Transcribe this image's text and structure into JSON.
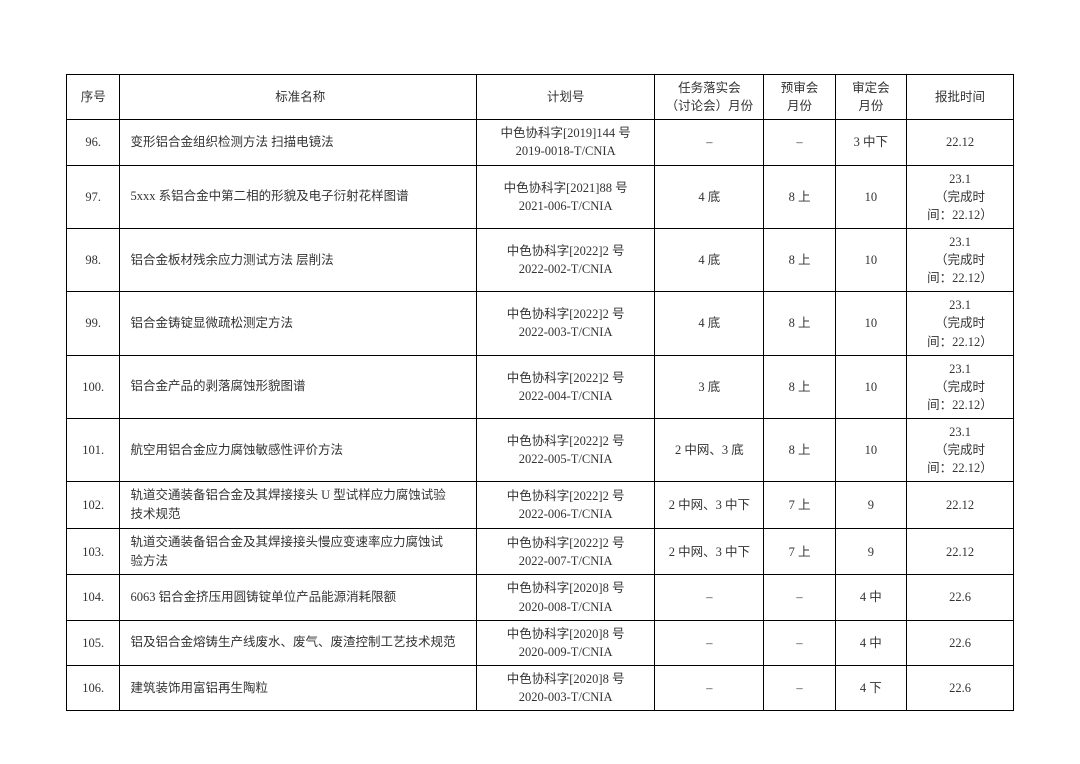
{
  "table": {
    "columns": {
      "seq": "序号",
      "name": "标准名称",
      "plan": "计划号",
      "m1": "任务落实会\n（讨论会）月份",
      "m2": "预审会\n月份",
      "m3": "审定会\n月份",
      "m4": "报批时间"
    },
    "rows": [
      {
        "seq": "96.",
        "name": "变形铝合金组织检测方法 扫描电镜法",
        "plan1": "中色协科字[2019]144 号",
        "plan2": "2019-0018-T/CNIA",
        "m1": "–",
        "m2": "–",
        "m3": "3 中下",
        "m4": "22.12"
      },
      {
        "seq": "97.",
        "name": "5xxx 系铝合金中第二相的形貌及电子衍射花样图谱",
        "plan1": "中色协科字[2021]88 号",
        "plan2": "2021-006-T/CNIA",
        "m1": "4 底",
        "m2": "8 上",
        "m3": "10",
        "m4": "23.1\n（完成时\n间：22.12）"
      },
      {
        "seq": "98.",
        "name": "铝合金板材残余应力测试方法 层削法",
        "plan1": "中色协科字[2022]2 号",
        "plan2": "2022-002-T/CNIA",
        "m1": "4 底",
        "m2": "8 上",
        "m3": "10",
        "m4": "23.1\n（完成时\n间：22.12）"
      },
      {
        "seq": "99.",
        "name": "铝合金铸锭显微疏松测定方法",
        "plan1": "中色协科字[2022]2 号",
        "plan2": "2022-003-T/CNIA",
        "m1": "4 底",
        "m2": "8 上",
        "m3": "10",
        "m4": "23.1\n（完成时\n间：22.12）"
      },
      {
        "seq": "100.",
        "name": "铝合金产品的剥落腐蚀形貌图谱",
        "plan1": "中色协科字[2022]2 号",
        "plan2": "2022-004-T/CNIA",
        "m1": "3 底",
        "m2": "8 上",
        "m3": "10",
        "m4": "23.1\n（完成时\n间：22.12）"
      },
      {
        "seq": "101.",
        "name": "航空用铝合金应力腐蚀敏感性评价方法",
        "plan1": "中色协科字[2022]2 号",
        "plan2": "2022-005-T/CNIA",
        "m1": "2 中网、3 底",
        "m2": "8 上",
        "m3": "10",
        "m4": "23.1\n（完成时\n间：22.12）"
      },
      {
        "seq": "102.",
        "name": "轨道交通装备铝合金及其焊接接头 U 型试样应力腐蚀试验\n技术规范",
        "plan1": "中色协科字[2022]2 号",
        "plan2": "2022-006-T/CNIA",
        "m1": "2 中网、3 中下",
        "m2": "7 上",
        "m3": "9",
        "m4": "22.12"
      },
      {
        "seq": "103.",
        "name": "轨道交通装备铝合金及其焊接接头慢应变速率应力腐蚀试\n验方法",
        "plan1": "中色协科字[2022]2 号",
        "plan2": "2022-007-T/CNIA",
        "m1": "2 中网、3 中下",
        "m2": "7 上",
        "m3": "9",
        "m4": "22.12"
      },
      {
        "seq": "104.",
        "name": "6063 铝合金挤压用圆铸锭单位产品能源消耗限额",
        "plan1": "中色协科字[2020]8 号",
        "plan2": "2020-008-T/CNIA",
        "m1": "–",
        "m2": "–",
        "m3": "4 中",
        "m4": "22.6"
      },
      {
        "seq": "105.",
        "name": "铝及铝合金熔铸生产线废水、废气、废渣控制工艺技术规范",
        "plan1": "中色协科字[2020]8 号",
        "plan2": "2020-009-T/CNIA",
        "m1": "–",
        "m2": "–",
        "m3": "4 中",
        "m4": "22.6"
      },
      {
        "seq": "106.",
        "name": "建筑装饰用富铝再生陶粒",
        "plan1": "中色协科字[2020]8 号",
        "plan2": "2020-003-T/CNIA",
        "m1": "–",
        "m2": "–",
        "m3": "4 下",
        "m4": "22.6"
      }
    ]
  }
}
